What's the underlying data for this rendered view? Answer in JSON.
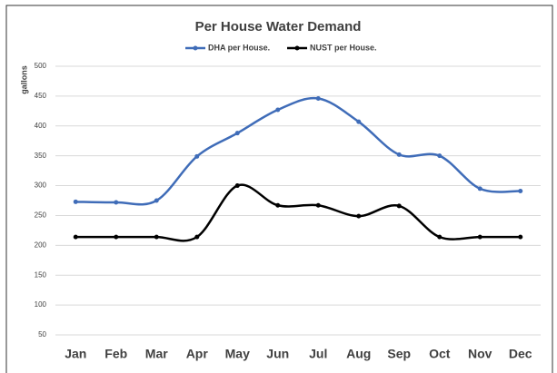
{
  "chart_data": {
    "type": "line",
    "title": "Per House Water Demand",
    "y_label": "gallons",
    "categories": [
      "Jan",
      "Feb",
      "Mar",
      "Apr",
      "May",
      "Jun",
      "Jul",
      "Aug",
      "Sep",
      "Oct",
      "Nov",
      "Dec"
    ],
    "series": [
      {
        "name": "DHA per House.",
        "color": "#3f6cb8",
        "values": [
          273,
          272,
          275,
          349,
          388,
          427,
          446,
          407,
          352,
          350,
          295,
          291
        ]
      },
      {
        "name": "NUST per House.",
        "color": "#000000",
        "values": [
          214,
          214,
          214,
          214,
          300,
          267,
          267,
          249,
          266,
          214,
          214,
          214
        ]
      }
    ],
    "ylim": [
      50,
      500
    ],
    "yticks": [
      50,
      100,
      150,
      200,
      250,
      300,
      350,
      400,
      450,
      500
    ],
    "grid": true,
    "legend": "top",
    "smooth": true
  }
}
